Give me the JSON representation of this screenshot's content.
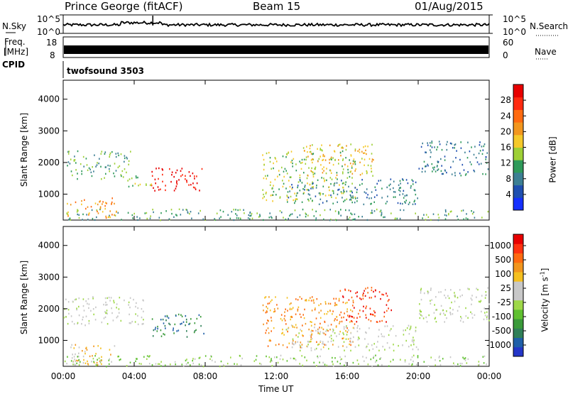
{
  "header": {
    "station": "Prince George (fitACF)",
    "beam": "Beam 15",
    "date": "01/Aug/2015"
  },
  "strip_panels": {
    "nsky_label": "N.Sky",
    "nsky_ticks": [
      "10^5",
      "10^0"
    ],
    "nsearch_label": "N.Search",
    "freq_label_line1": "Freq.",
    "freq_label_line2": "[MHz]",
    "freq_ticks": [
      "18",
      "8"
    ],
    "nave_ticks": [
      "60",
      "0"
    ],
    "nave_label": "Nave",
    "cpid_label": "CPID",
    "cpid_value": "twofsound 3503"
  },
  "chart_data": [
    {
      "type": "heatmap",
      "name_printed": "Power [dB]",
      "ylabel": "Slant Range [km]",
      "yticks": [
        1000,
        2000,
        3000,
        4000
      ],
      "ylim": [
        180,
        4600
      ],
      "xlabel": "Time UT",
      "xticks": [
        "00:00",
        "04:00",
        "08:00",
        "12:00",
        "16:00",
        "20:00",
        "00:00"
      ],
      "xlim_hours": [
        0,
        24
      ],
      "colorbar_label": "Power [dB]",
      "colorbar_ticks": [
        "4",
        "8",
        "12",
        "16",
        "20",
        "24",
        "28"
      ],
      "colorbar_colors": [
        "#1530ff",
        "#1f4fb0",
        "#3c7f93",
        "#2f9a5a",
        "#9ed036",
        "#f5c92a",
        "#f2961e",
        "#ff6a10",
        "#ff2a10",
        "#e80000"
      ],
      "regions": [
        {
          "t_start": 4.9,
          "t_end": 7.9,
          "r_start": 1100,
          "r_end": 1850,
          "level": 9
        },
        {
          "t_start": 0.2,
          "t_end": 3.8,
          "r_start": 1500,
          "r_end": 2400,
          "level": 3
        },
        {
          "t_start": 0.0,
          "t_end": 24.0,
          "r_start": 200,
          "r_end": 550,
          "level": 3
        },
        {
          "t_start": 0.2,
          "t_end": 3.0,
          "r_start": 250,
          "r_end": 900,
          "level": 6
        },
        {
          "t_start": 3.5,
          "t_end": 5.0,
          "r_start": 1200,
          "r_end": 1600,
          "level": 4
        },
        {
          "t_start": 11.2,
          "t_end": 16.5,
          "r_start": 800,
          "r_end": 2400,
          "level": 4
        },
        {
          "t_start": 13.5,
          "t_end": 17.5,
          "r_start": 1600,
          "r_end": 2600,
          "level": 5
        },
        {
          "t_start": 12.5,
          "t_end": 20.0,
          "r_start": 700,
          "r_end": 1500,
          "level": 2
        },
        {
          "t_start": 20.0,
          "t_end": 24.0,
          "r_start": 1600,
          "r_end": 2700,
          "level": 2
        }
      ]
    },
    {
      "type": "heatmap",
      "name_printed": "Velocity [m s-1]",
      "ylabel": "Slant Range [km]",
      "yticks": [
        1000,
        2000,
        3000,
        4000
      ],
      "ylim": [
        180,
        4600
      ],
      "xlabel": "Time UT",
      "xticks": [
        "00:00",
        "04:00",
        "08:00",
        "12:00",
        "16:00",
        "20:00",
        "00:00"
      ],
      "xlim_hours": [
        0,
        24
      ],
      "colorbar_label": "Velocity [m s",
      "colorbar_label_sup": "-1",
      "colorbar_label_end": "]",
      "colorbar_ticks": [
        "1000",
        "500",
        "100",
        "25",
        "-25",
        "-100",
        "-500",
        "-1000"
      ],
      "colorbar_colors": [
        "#2436c8",
        "#1f5fa8",
        "#2f7f58",
        "#3a9a3a",
        "#5fc030",
        "#9ed848",
        "#c8c8c8",
        "#c8c8c8",
        "#f5c020",
        "#f2961e",
        "#ff6a10",
        "#ff3210",
        "#e80000"
      ],
      "regions": [
        {
          "t_start": 4.9,
          "t_end": 7.9,
          "r_start": 1100,
          "r_end": 1850,
          "level": 2
        },
        {
          "t_start": 0.0,
          "t_end": 4.5,
          "r_start": 1500,
          "r_end": 2400,
          "level": 6
        },
        {
          "t_start": 0.2,
          "t_end": 3.0,
          "r_start": 250,
          "r_end": 900,
          "level": 8
        },
        {
          "t_start": 0.0,
          "t_end": 24.0,
          "r_start": 200,
          "r_end": 550,
          "level": 5
        },
        {
          "t_start": 11.2,
          "t_end": 16.5,
          "r_start": 800,
          "r_end": 2400,
          "level": 9
        },
        {
          "t_start": 15.5,
          "t_end": 18.5,
          "r_start": 1600,
          "r_end": 2700,
          "level": 11
        },
        {
          "t_start": 12.5,
          "t_end": 20.0,
          "r_start": 700,
          "r_end": 1500,
          "level": 6
        },
        {
          "t_start": 20.0,
          "t_end": 24.0,
          "r_start": 1600,
          "r_end": 2700,
          "level": 6
        }
      ]
    }
  ]
}
